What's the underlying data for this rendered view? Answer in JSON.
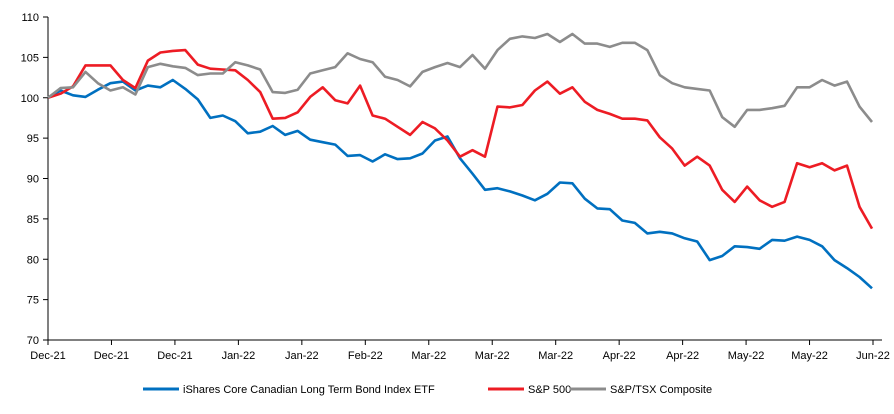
{
  "chart_data": {
    "type": "line",
    "title": "",
    "xlabel": "",
    "ylabel": "",
    "ylim": [
      70,
      110
    ],
    "yticks": [
      70,
      75,
      80,
      85,
      90,
      95,
      100,
      105,
      110
    ],
    "xtick_labels": [
      "Dec-21",
      "Dec-21",
      "Dec-21",
      "Jan-22",
      "Jan-22",
      "Feb-22",
      "Mar-22",
      "Mar-22",
      "Mar-22",
      "Apr-22",
      "Apr-22",
      "May-22",
      "May-22",
      "Jun-22"
    ],
    "grid": false,
    "legend_position": "bottom",
    "series": [
      {
        "name": "iShares Core Canadian Long Term Bond Index ETF",
        "color": "#0070c0",
        "values": [
          100,
          100.9,
          100.3,
          100.1,
          101,
          101.8,
          102,
          100.9,
          101.5,
          101.3,
          102.2,
          101.1,
          99.8,
          97.5,
          97.8,
          97.1,
          95.6,
          95.8,
          96.5,
          95.4,
          95.9,
          94.8,
          94.5,
          94.2,
          92.8,
          92.9,
          92.1,
          93.0,
          92.4,
          92.5,
          93.1,
          94.7,
          95.2,
          92.5,
          90.6,
          88.6,
          88.8,
          88.4,
          87.9,
          87.3,
          88.1,
          89.5,
          89.4,
          87.5,
          86.3,
          86.2,
          84.8,
          84.5,
          83.2,
          83.4,
          83.2,
          82.6,
          82.2,
          79.9,
          80.4,
          81.6,
          81.5,
          81.3,
          82.4,
          82.3,
          82.8,
          82.4,
          81.6,
          79.9,
          78.9,
          77.8,
          76.4
        ]
      },
      {
        "name": "S&P 500",
        "color": "#ed1c24",
        "values": [
          100,
          100.5,
          101.4,
          104.0,
          104.0,
          104.0,
          102.2,
          101.2,
          104.6,
          105.6,
          105.8,
          105.9,
          104.1,
          103.6,
          103.5,
          103.4,
          102.2,
          100.7,
          97.4,
          97.5,
          98.2,
          100.1,
          101.3,
          99.7,
          99.3,
          101.5,
          97.8,
          97.4,
          96.4,
          95.4,
          97.0,
          96.2,
          94.7,
          92.7,
          93.5,
          92.7,
          98.9,
          98.8,
          99.1,
          100.9,
          102.0,
          100.5,
          101.3,
          99.5,
          98.5,
          98.0,
          97.4,
          97.4,
          97.2,
          95.1,
          93.7,
          91.6,
          92.7,
          91.6,
          88.6,
          87.1,
          89.0,
          87.3,
          86.5,
          87.1,
          91.9,
          91.4,
          91.9,
          91.0,
          91.6,
          86.5,
          83.8
        ]
      },
      {
        "name": "S&P/TSX Composite",
        "color": "#8c8c8c",
        "values": [
          100,
          101.2,
          101.3,
          103.2,
          101.8,
          100.9,
          101.3,
          100.4,
          103.8,
          104.2,
          103.9,
          103.7,
          102.8,
          103.0,
          103.0,
          104.4,
          104.0,
          103.5,
          100.7,
          100.6,
          101.0,
          103.0,
          103.4,
          103.8,
          105.5,
          104.8,
          104.4,
          102.6,
          102.2,
          101.4,
          103.2,
          103.8,
          104.3,
          103.8,
          105.3,
          103.6,
          105.9,
          107.3,
          107.6,
          107.4,
          107.9,
          106.9,
          107.9,
          106.7,
          106.7,
          106.3,
          106.8,
          106.8,
          105.9,
          102.8,
          101.8,
          101.3,
          101.1,
          100.9,
          97.6,
          96.4,
          98.5,
          98.5,
          98.7,
          99.0,
          101.3,
          101.3,
          102.2,
          101.5,
          102.0,
          98.9,
          97.0
        ]
      }
    ]
  }
}
